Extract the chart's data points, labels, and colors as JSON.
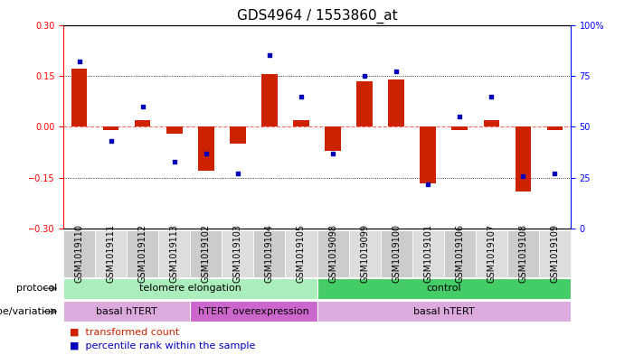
{
  "title": "GDS4964 / 1553860_at",
  "samples": [
    "GSM1019110",
    "GSM1019111",
    "GSM1019112",
    "GSM1019113",
    "GSM1019102",
    "GSM1019103",
    "GSM1019104",
    "GSM1019105",
    "GSM1019098",
    "GSM1019099",
    "GSM1019100",
    "GSM1019101",
    "GSM1019106",
    "GSM1019107",
    "GSM1019108",
    "GSM1019109"
  ],
  "red_values": [
    0.17,
    -0.01,
    0.02,
    -0.02,
    -0.13,
    -0.05,
    0.155,
    0.02,
    -0.07,
    0.135,
    0.14,
    -0.165,
    -0.01,
    0.02,
    -0.19,
    -0.01
  ],
  "blue_values": [
    82,
    43,
    60,
    33,
    37,
    27,
    85,
    65,
    37,
    75,
    77,
    22,
    55,
    65,
    26,
    27
  ],
  "ylim_left": [
    -0.3,
    0.3
  ],
  "ylim_right": [
    0,
    100
  ],
  "yticks_left": [
    -0.3,
    -0.15,
    0.0,
    0.15,
    0.3
  ],
  "yticks_right": [
    0,
    25,
    50,
    75,
    100
  ],
  "ytick_labels_right": [
    "0",
    "25",
    "50",
    "75",
    "100%"
  ],
  "protocol_groups": [
    {
      "label": "telomere elongation",
      "start": 0,
      "end": 7,
      "color": "#aaeebb"
    },
    {
      "label": "control",
      "start": 8,
      "end": 15,
      "color": "#44cc66"
    }
  ],
  "genotype_groups": [
    {
      "label": "basal hTERT",
      "start": 0,
      "end": 3,
      "color": "#ddaadd"
    },
    {
      "label": "hTERT overexpression",
      "start": 4,
      "end": 7,
      "color": "#cc66cc"
    },
    {
      "label": "basal hTERT",
      "start": 8,
      "end": 15,
      "color": "#ddaadd"
    }
  ],
  "bar_color": "#CC2200",
  "dot_color": "#0000BB",
  "zero_line_color": "#FF6666",
  "bg_color": "#FFFFFF",
  "title_fontsize": 11,
  "tick_fontsize": 7,
  "annot_fontsize": 8,
  "legend_fontsize": 8
}
